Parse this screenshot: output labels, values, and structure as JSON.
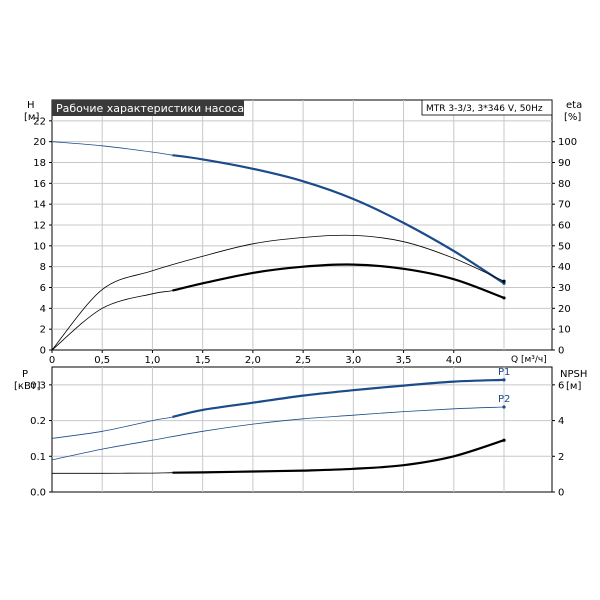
{
  "chart_data": [
    {
      "type": "line",
      "title": "Рабочие характеристики насоса",
      "subtitle": "MTR 3-3/3, 3*346 V, 50Hz",
      "xlabel": "Q [м³/ч]",
      "ylabel_left": {
        "name": "H",
        "unit": "[м]"
      },
      "ylabel_right": {
        "name": "eta",
        "unit": "[%]"
      },
      "xlim": [
        0,
        4.5
      ],
      "ylim_left": [
        0,
        24
      ],
      "ylim_right": [
        0,
        120
      ],
      "x_ticks": [
        "0",
        "0,5",
        "1,0",
        "1,5",
        "2,0",
        "2,5",
        "3,0",
        "3,5",
        "4,0"
      ],
      "y_ticks_left": [
        "0",
        "2",
        "4",
        "6",
        "8",
        "10",
        "12",
        "14",
        "16",
        "18",
        "20",
        "22"
      ],
      "y_ticks_right": [
        "0",
        "10",
        "20",
        "30",
        "40",
        "50",
        "60",
        "70",
        "80",
        "90",
        "100"
      ],
      "grid": true,
      "series": [
        {
          "axis": "left",
          "color": "#1b4b8a",
          "x": [
            0,
            0.5,
            1.0,
            1.2,
            1.5,
            2.0,
            2.5,
            3.0,
            3.5,
            4.0,
            4.5
          ],
          "values": [
            20.0,
            19.6,
            19.0,
            18.7,
            18.3,
            17.4,
            16.2,
            14.5,
            12.2,
            9.5,
            6.4
          ],
          "bold_from": 1.2
        },
        {
          "axis": "right",
          "color": "#000000",
          "x": [
            0,
            0.5,
            1.0,
            1.5,
            2.0,
            2.5,
            3.0,
            3.5,
            4.0,
            4.5
          ],
          "values": [
            0,
            29,
            38,
            45,
            51,
            54,
            55,
            52,
            44,
            33
          ],
          "bold_from": 99
        },
        {
          "axis": "right",
          "color": "#000000",
          "x": [
            0,
            0.5,
            1.0,
            1.2,
            1.5,
            2.0,
            2.5,
            3.0,
            3.5,
            4.0,
            4.5
          ],
          "values": [
            0,
            20,
            27,
            28.5,
            32,
            37,
            40,
            41,
            39,
            34,
            25
          ],
          "bold_from": 1.2
        }
      ]
    },
    {
      "type": "line",
      "xlabel": "",
      "ylabel_left": {
        "name": "P",
        "unit": "[кВт]"
      },
      "ylabel_right": {
        "name": "NPSH",
        "unit": "[м]"
      },
      "xlim": [
        0,
        4.5
      ],
      "ylim_left": [
        0,
        0.35
      ],
      "ylim_right": [
        0,
        7
      ],
      "y_ticks_left": [
        "0.0",
        "0.1",
        "0.2",
        "0.3"
      ],
      "y_ticks_right": [
        "0",
        "2",
        "4",
        "6"
      ],
      "grid": true,
      "series": [
        {
          "name": "P1",
          "axis": "left",
          "color": "#1b4b8a",
          "x": [
            0,
            0.5,
            1.0,
            1.2,
            1.5,
            2.0,
            2.5,
            3.0,
            3.5,
            4.0,
            4.5
          ],
          "values": [
            0.15,
            0.17,
            0.2,
            0.21,
            0.23,
            0.25,
            0.27,
            0.285,
            0.298,
            0.309,
            0.314
          ],
          "bold_from": 1.2
        },
        {
          "name": "P2",
          "axis": "left",
          "color": "#1b4b8a",
          "x": [
            0,
            0.5,
            1.0,
            1.5,
            2.0,
            2.5,
            3.0,
            3.5,
            4.0,
            4.5
          ],
          "values": [
            0.09,
            0.12,
            0.145,
            0.17,
            0.19,
            0.205,
            0.215,
            0.225,
            0.233,
            0.238
          ],
          "bold_from": 99
        },
        {
          "axis": "right",
          "color": "#000000",
          "x": [
            0,
            0.5,
            1.0,
            1.2,
            1.5,
            2.0,
            2.5,
            3.0,
            3.5,
            4.0,
            4.5
          ],
          "values": [
            1.05,
            1.05,
            1.06,
            1.08,
            1.1,
            1.15,
            1.2,
            1.3,
            1.5,
            2.0,
            2.9
          ],
          "bold_from": 1.2
        }
      ]
    }
  ]
}
